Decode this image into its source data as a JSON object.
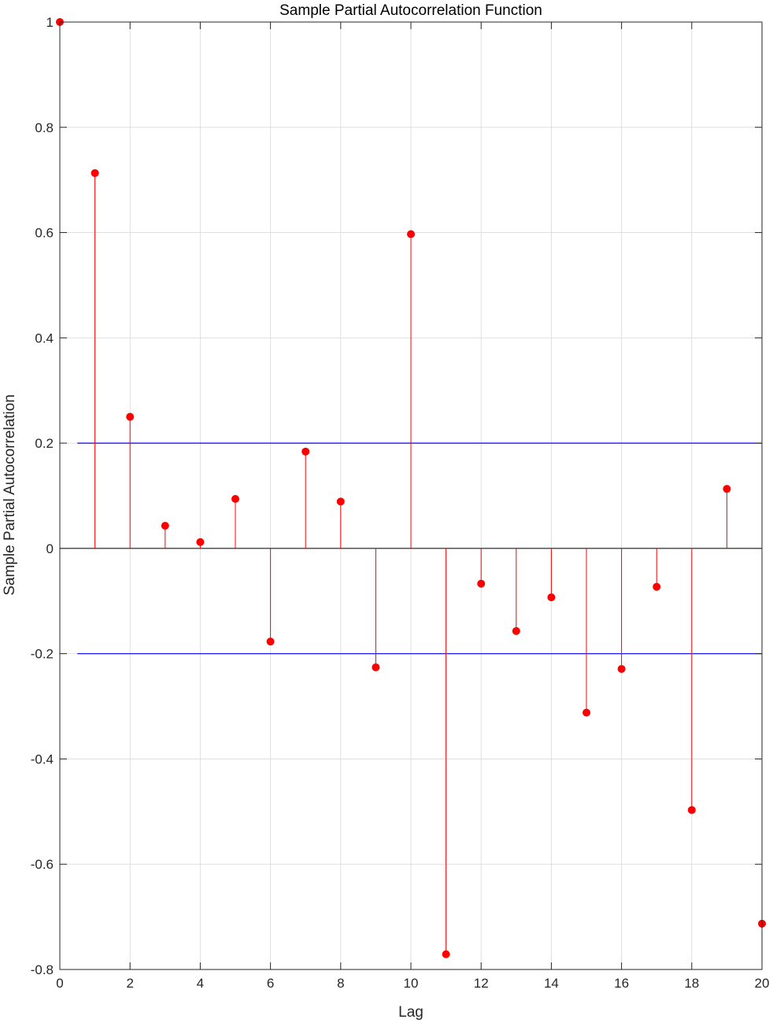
{
  "chart_data": {
    "type": "stem",
    "title": "Sample Partial Autocorrelation Function",
    "xlabel": "Lag",
    "ylabel": "Sample Partial Autocorrelation",
    "xlim": [
      0,
      20
    ],
    "ylim": [
      -0.8,
      1
    ],
    "xticks": [
      "0",
      "2",
      "4",
      "6",
      "8",
      "10",
      "12",
      "14",
      "16",
      "18",
      "20"
    ],
    "yticks": [
      "-0.8",
      "-0.6",
      "-0.4",
      "-0.2",
      "0",
      "0.2",
      "0.4",
      "0.6",
      "0.8",
      "1"
    ],
    "grid": true,
    "series": [
      {
        "x": [
          0,
          1,
          2,
          3,
          4,
          5,
          6,
          7,
          8,
          9,
          10,
          11,
          12,
          13,
          14,
          15,
          16,
          17,
          18,
          19,
          20
        ],
        "values": [
          1.0,
          0.713,
          0.25,
          0.043,
          0.012,
          0.094,
          -0.177,
          0.184,
          0.089,
          -0.226,
          0.597,
          -0.771,
          -0.067,
          -0.157,
          -0.093,
          -0.312,
          -0.229,
          -0.073,
          -0.497,
          0.113,
          -0.713
        ],
        "color": "#ff0000"
      }
    ],
    "bounds": {
      "upper": 0.2,
      "lower": -0.2,
      "x_start": 0.5,
      "x_end": 20,
      "color": "#0000ff"
    }
  }
}
